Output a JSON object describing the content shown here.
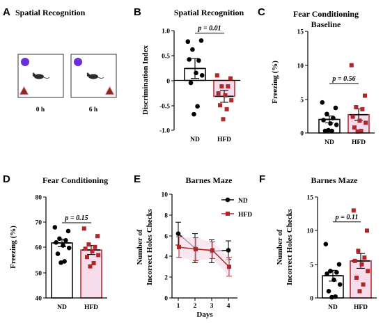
{
  "colors": {
    "nd": "#000000",
    "hfd": "#b0262a",
    "hfd_fill": "#f6dcea",
    "circle": "#6a2fd8",
    "triangle": "#8b2a1e"
  },
  "panel_a": {
    "letter": "A",
    "title": "Spatial Recognition",
    "box_labels": [
      "0 h",
      "6 h"
    ]
  },
  "chart_data": [
    {
      "id": "B",
      "type": "bar",
      "letter": "B",
      "title": "Spatial Recognition",
      "title2": "",
      "ylabel": "Discrimination Index",
      "ylim": [
        -1.0,
        1.0
      ],
      "yticks": [
        "1.0",
        "0.5",
        "0",
        "-0.5",
        "-1.0"
      ],
      "categories": [
        "ND",
        "HFD"
      ],
      "means": [
        0.24,
        -0.32
      ],
      "sem": [
        0.2,
        0.12
      ],
      "points": [
        [
          0.78,
          0.8,
          0.62,
          0.4,
          0.42,
          0.15,
          0.1,
          -0.05,
          -0.52,
          -0.68
        ],
        [
          0.1,
          0.04,
          -0.12,
          -0.12,
          -0.26,
          -0.3,
          -0.4,
          -0.5,
          -0.58,
          -0.78
        ]
      ],
      "significance": {
        "label": "p = 0.01"
      }
    },
    {
      "id": "C",
      "type": "bar",
      "letter": "C",
      "title": "Fear Conditioning",
      "title2": "Baseline",
      "ylabel": "Freezing (%)",
      "ylim": [
        0,
        15
      ],
      "yticks": [
        "15",
        "10",
        "5",
        "0"
      ],
      "categories": [
        "ND",
        "HFD"
      ],
      "means": [
        2.0,
        2.7
      ],
      "sem": [
        0.5,
        0.85
      ],
      "points": [
        [
          4.5,
          3.7,
          2.8,
          2.2,
          1.9,
          1.4,
          1.2,
          0.3,
          0.3,
          0.4
        ],
        [
          10.0,
          5.5,
          3.8,
          3.5,
          2.4,
          1.8,
          1.5,
          0.8,
          0.3,
          0.2
        ]
      ],
      "significance": {
        "label": "p = 0.56"
      }
    },
    {
      "id": "D",
      "type": "bar",
      "letter": "D",
      "title": "Fear Conditioning",
      "title2": "",
      "ylabel": "Freezing (%)",
      "ylim": [
        40,
        80
      ],
      "yticks": [
        "80",
        "70",
        "60",
        "50",
        "40"
      ],
      "categories": [
        "ND",
        "HFD"
      ],
      "means": [
        61.8,
        59.0
      ],
      "sem": [
        1.5,
        1.8
      ],
      "points": [
        [
          68.0,
          66.5,
          63.5,
          62.8,
          62.0,
          60.8,
          59.8,
          57.5,
          54.5,
          54.0
        ],
        [
          67.5,
          64.5,
          61.2,
          60.2,
          59.5,
          58.5,
          57.0,
          56.2,
          53.8,
          52.5
        ]
      ],
      "significance": {
        "label": "p = 0.15"
      }
    },
    {
      "id": "E",
      "type": "line",
      "letter": "E",
      "title": "Barnes Maze",
      "title2": "",
      "ylabel_1": "Number of",
      "ylabel_2": "Incorrect Holes Checks",
      "xlabel": "Days",
      "ylim": [
        0,
        10
      ],
      "yticks": [
        "10",
        "8",
        "6",
        "4",
        "2",
        "0"
      ],
      "x": [
        1,
        2,
        3,
        4
      ],
      "xticks": [
        "1",
        "2",
        "3",
        "4"
      ],
      "series": [
        {
          "name": "ND",
          "values": [
            6.2,
            4.8,
            4.5,
            4.6
          ],
          "err": [
            1.1,
            1.4,
            1.1,
            0.9
          ]
        },
        {
          "name": "HFD",
          "values": [
            4.9,
            4.7,
            4.6,
            3.0
          ],
          "err": [
            1.0,
            1.1,
            0.8,
            0.9
          ]
        }
      ]
    },
    {
      "id": "F",
      "type": "bar",
      "letter": "F",
      "title": "Barnes Maze",
      "title2": "",
      "ylabel_1": "Number of",
      "ylabel_2": "Incorrect Holes Checks",
      "ylim": [
        0,
        15
      ],
      "yticks": [
        "15",
        "10",
        "5",
        "0"
      ],
      "categories": [
        "ND",
        "HFD"
      ],
      "means": [
        3.3,
        5.5
      ],
      "sem": [
        0.8,
        1.1
      ],
      "points": [
        [
          8.0,
          5.0,
          4.0,
          3.8,
          3.6,
          2.7,
          2.0,
          1.0,
          0.2,
          0.1
        ],
        [
          13.0,
          10.0,
          7.0,
          6.0,
          5.5,
          5.0,
          4.0,
          3.0,
          2.0,
          1.0
        ]
      ],
      "significance": {
        "label": "p = 0.11"
      }
    }
  ]
}
